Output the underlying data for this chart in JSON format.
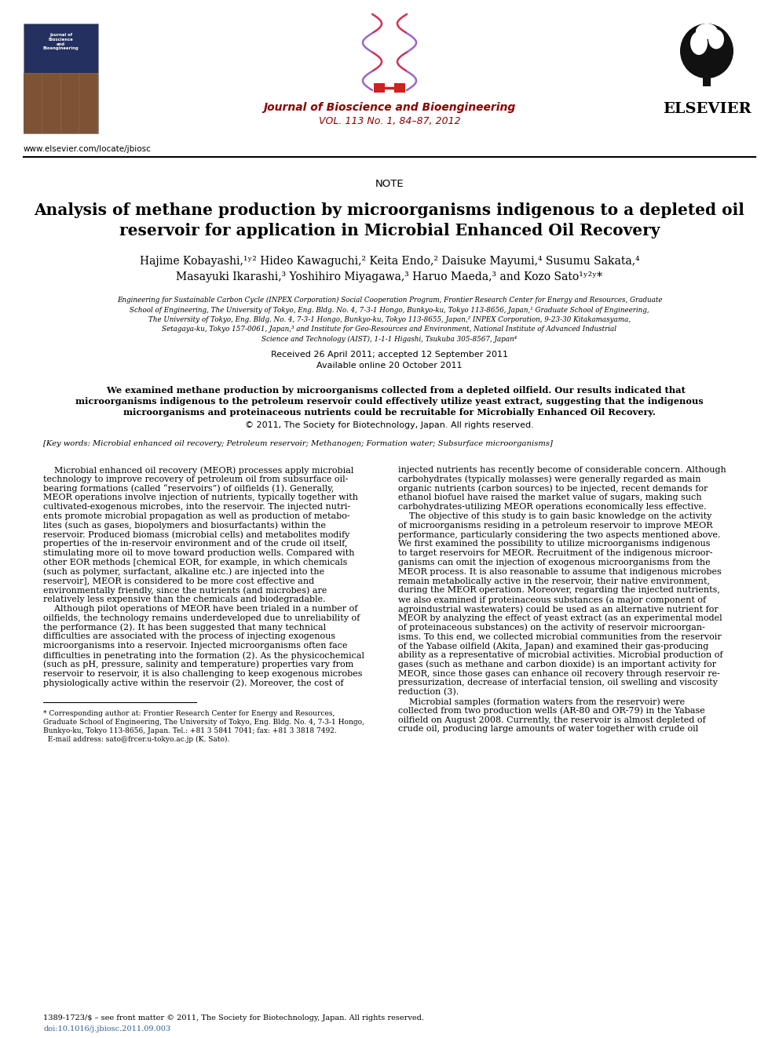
{
  "bg_color": "#ffffff",
  "journal_name": "Journal of Bioscience and Bioengineering",
  "journal_vol": "VOL. 113 No. 1, 84–87, 2012",
  "elsevier_text": "ELSEVIER",
  "website": "www.elsevier.com/locate/jbiosc",
  "section_label": "NOTE",
  "title_line1": "Analysis of methane production by microorganisms indigenous to a depleted oil",
  "title_line2": "reservoir for application in Microbial Enhanced Oil Recovery",
  "authors_line1": "Hajime Kobayashi,",
  "authors_line2": "Masayuki Ikarashi,",
  "affil_lines": [
    "Engineering for Sustainable Carbon Cycle (INPEX Corporation) Social Cooperation Program, Frontier Research Center for Energy and Resources, Graduate",
    "School of Engineering, The University of Tokyo, Eng. Bldg. No. 4, 7-3-1 Hongo, Bunkyo-ku, Tokyo 113-8656, Japan,¹ Graduate School of Engineering,",
    "The University of Tokyo, Eng. Bldg. No. 4, 7-3-1 Hongo, Bunkyo-ku, Tokyo 113-8655, Japan,² INPEX Corporation, 9-23-30 Kitakamasyama,",
    "Setagaya-ku, Tokyo 157-0061, Japan,³ and Institute for Geo-Resources and Environment, National Institute of Advanced Industrial",
    "Science and Technology (AIST), 1-1-1 Higashi, Tsukuba 305-8567, Japan⁴"
  ],
  "received": "Received 26 April 2011; accepted 12 September 2011",
  "available": "Available online 20 October 2011",
  "abstract_line1": "    We examined methane production by microorganisms collected from a depleted oilfield. Our results indicated that",
  "abstract_line2": "microorganisms indigenous to the petroleum reservoir could effectively utilize yeast extract, suggesting that the indigenous",
  "abstract_line3": "microorganisms and proteinaceous nutrients could be recruitable for Microbially Enhanced Oil Recovery.",
  "copyright": "© 2011, The Society for Biotechnology, Japan. All rights reserved.",
  "keywords": "[Key words: Microbial enhanced oil recovery; Petroleum reservoir; Methanogen; Formation water; Subsurface microorganisms]",
  "journal_color": "#8B0000",
  "footer_issn": "1389-1723/$ – see front matter © 2011, The Society for Biotechnology, Japan. All rights reserved.",
  "footer_doi": "doi:10.1016/j.jbiosc.2011.09.003",
  "left_body_lines": [
    "    Microbial enhanced oil recovery (MEOR) processes apply microbial",
    "technology to improve recovery of petroleum oil from subsurface oil-",
    "bearing formations (called “reservoirs”) of oilfields (1). Generally,",
    "MEOR operations involve injection of nutrients, typically together with",
    "cultivated-exogenous microbes, into the reservoir. The injected nutri-",
    "ents promote microbial propagation as well as production of metabo-",
    "lites (such as gases, biopolymers and biosurfactants) within the",
    "reservoir. Produced biomass (microbial cells) and metabolites modify",
    "properties of the in-reservoir environment and of the crude oil itself,",
    "stimulating more oil to move toward production wells. Compared with",
    "other EOR methods [chemical EOR, for example, in which chemicals",
    "(such as polymer, surfactant, alkaline etc.) are injected into the",
    "reservoir], MEOR is considered to be more cost effective and",
    "environmentally friendly, since the nutrients (and microbes) are",
    "relatively less expensive than the chemicals and biodegradable.",
    "    Although pilot operations of MEOR have been trialed in a number of",
    "oilfields, the technology remains underdeveloped due to unreliability of",
    "the performance (2). It has been suggested that many technical",
    "difficulties are associated with the process of injecting exogenous",
    "microorganisms into a reservoir. Injected microorganisms often face",
    "difficulties in penetrating into the formation (2). As the physicochemical",
    "(such as pH, pressure, salinity and temperature) properties vary from",
    "reservoir to reservoir, it is also challenging to keep exogenous microbes",
    "physiologically active within the reservoir (2). Moreover, the cost of"
  ],
  "right_body_lines": [
    "injected nutrients has recently become of considerable concern. Although",
    "carbohydrates (typically molasses) were generally regarded as main",
    "organic nutrients (carbon sources) to be injected, recent demands for",
    "ethanol biofuel have raised the market value of sugars, making such",
    "carbohydrates-utilizing MEOR operations economically less effective.",
    "    The objective of this study is to gain basic knowledge on the activity",
    "of microorganisms residing in a petroleum reservoir to improve MEOR",
    "performance, particularly considering the two aspects mentioned above.",
    "We first examined the possibility to utilize microorganisms indigenous",
    "to target reservoirs for MEOR. Recruitment of the indigenous microor-",
    "ganisms can omit the injection of exogenous microorganisms from the",
    "MEOR process. It is also reasonable to assume that indigenous microbes",
    "remain metabolically active in the reservoir, their native environment,",
    "during the MEOR operation. Moreover, regarding the injected nutrients,",
    "we also examined if proteinaceous substances (a major component of",
    "agroindustrial wastewaters) could be used as an alternative nutrient for",
    "MEOR by analyzing the effect of yeast extract (as an experimental model",
    "of proteinaceous substances) on the activity of reservoir microorgan-",
    "isms. To this end, we collected microbial communities from the reservoir",
    "of the Yabase oilfield (Akita, Japan) and examined their gas-producing",
    "ability as a representative of microbial activities. Microbial production of",
    "gases (such as methane and carbon dioxide) is an important activity for",
    "MEOR, since those gases can enhance oil recovery through reservoir re-",
    "pressurization, decrease of interfacial tension, oil swelling and viscosity",
    "reduction (3).",
    "    Microbial samples (formation waters from the reservoir) were",
    "collected from two production wells (AR-80 and OR-79) in the Yabase",
    "oilfield on August 2008. Currently, the reservoir is almost depleted of",
    "crude oil, producing large amounts of water together with crude oil"
  ],
  "footer_lines": [
    "* Corresponding author at: Frontier Research Center for Energy and Resources,",
    "Graduate School of Engineering, The University of Tokyo, Eng. Bldg. No. 4, 7-3-1 Hongo,",
    "Bunkyo-ku, Tokyo 113-8656, Japan. Tel.: +81 3 5841 7041; fax: +81 3 3818 7492.",
    "  E-mail address: sato@frcer.u-tokyo.ac.jp (K. Sato)."
  ]
}
